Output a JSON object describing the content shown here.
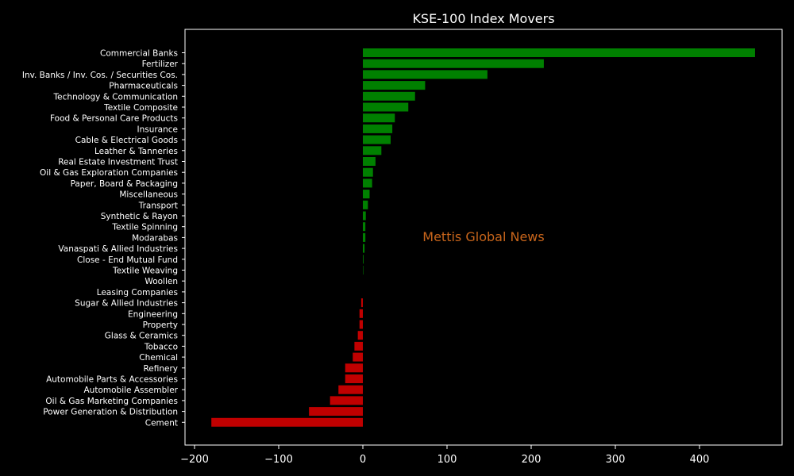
{
  "chart_data": {
    "type": "bar",
    "orientation": "horizontal",
    "title": "KSE-100 Index Movers",
    "watermark": "Mettis Global News",
    "xlabel": "",
    "ylabel": "",
    "xlim": [
      -210,
      500
    ],
    "xticks": [
      -200,
      -100,
      0,
      100,
      200,
      300,
      400
    ],
    "xtick_labels": [
      "−200",
      "−100",
      "0",
      "100",
      "200",
      "300",
      "400"
    ],
    "grid": false,
    "colors": {
      "background": "#000000",
      "positive": "#008000",
      "negative": "#c00000",
      "watermark": "#c8651b",
      "text": "#ffffff"
    },
    "categories": [
      "Commercial Banks",
      "Fertilizer",
      "Inv. Banks / Inv. Cos. / Securities Cos.",
      "Pharmaceuticals",
      "Technology & Communication",
      "Textile Composite",
      "Food & Personal Care Products",
      "Insurance",
      "Cable & Electrical Goods",
      "Leather & Tanneries",
      "Real Estate Investment Trust",
      "Oil & Gas Exploration Companies",
      "Paper, Board & Packaging",
      "Miscellaneous",
      "Transport",
      "Synthetic & Rayon",
      "Textile Spinning",
      "Modarabas",
      "Vanaspati & Allied Industries",
      "Close - End Mutual Fund",
      "Textile Weaving",
      "Woollen",
      "Leasing Companies",
      "Sugar & Allied Industries",
      "Engineering",
      "Property",
      "Glass & Ceramics",
      "Tobacco",
      "Chemical",
      "Refinery",
      "Automobile Parts & Accessories",
      "Automobile Assembler",
      "Oil & Gas Marketing Companies",
      "Power Generation & Distribution",
      "Cement"
    ],
    "values": [
      466,
      215,
      148,
      74,
      62,
      54,
      38,
      35,
      33,
      22,
      15,
      12,
      11,
      8,
      6,
      3.5,
      3,
      3,
      2,
      0.8,
      0.5,
      0,
      0,
      -2,
      -4,
      -4,
      -6,
      -10,
      -12,
      -21,
      -21,
      -29,
      -39,
      -64,
      -180
    ]
  }
}
